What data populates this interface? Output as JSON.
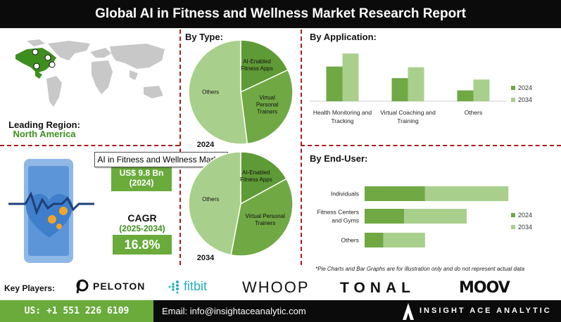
{
  "header": {
    "title": "Global AI in Fitness and Wellness Market Research Report"
  },
  "region": {
    "label": "Leading Region:",
    "value": "North America"
  },
  "tooltip": {
    "text": "AI in Fitness and Wellness Market"
  },
  "market_value": {
    "amount": "US$ 9.8 Bn",
    "year": "(2024)"
  },
  "cagr": {
    "label": "CAGR",
    "period": "(2025-2034)",
    "value": "16.8%"
  },
  "colors": {
    "dark_green": "#5e9a35",
    "mid_green": "#70a844",
    "light_green": "#a9cf8d",
    "accent_red": "#a51c1c"
  },
  "sections": {
    "by_type": "By Type:",
    "by_application": "By Application:",
    "by_end_user": "By End-User:"
  },
  "note": "*Pie Charts and Bar Graphs are for illustration only and do not represent actual data",
  "key_players": {
    "label": "Key Players:",
    "brands": [
      "PELOTON",
      "fitbit",
      "WHOOP",
      "TONAL",
      "MOOV"
    ]
  },
  "footer": {
    "phone": "US: +1 551 226 6109",
    "email": "Email: info@insightaceanalytic.com",
    "company": "INSIGHT ACE ANALYTIC"
  },
  "chart_data": [
    {
      "type": "pie",
      "title": "2024",
      "slices": [
        {
          "label": "AI-Enabled Fitness Apps",
          "value": 18
        },
        {
          "label": "Virtual Personal Trainers",
          "value": 30
        },
        {
          "label": "Others",
          "value": 52
        }
      ]
    },
    {
      "type": "pie",
      "title": "2034",
      "slices": [
        {
          "label": "AI-Enabled Fitness Apps",
          "value": 17
        },
        {
          "label": "Virtual Personal Trainers",
          "value": 36
        },
        {
          "label": "Others",
          "value": 47
        }
      ]
    },
    {
      "type": "bar",
      "orientation": "vertical",
      "categories": [
        "Health Monitoring and Tracking",
        "Virtual Coaching and Training",
        "Others"
      ],
      "series": [
        {
          "name": "2024",
          "values": [
            48,
            32,
            15
          ]
        },
        {
          "name": "2034",
          "values": [
            66,
            47,
            30
          ]
        }
      ],
      "ylim": [
        0,
        70
      ],
      "legend": "right"
    },
    {
      "type": "bar",
      "orientation": "horizontal-stacked",
      "categories": [
        "Individuals",
        "Fitness Centers and Gyms",
        "Others"
      ],
      "series": [
        {
          "name": "2024",
          "values": [
            58,
            38,
            18
          ]
        },
        {
          "name": "2034",
          "values": [
            80,
            60,
            40
          ]
        }
      ],
      "xlim": [
        0,
        150
      ],
      "legend": "right"
    }
  ]
}
